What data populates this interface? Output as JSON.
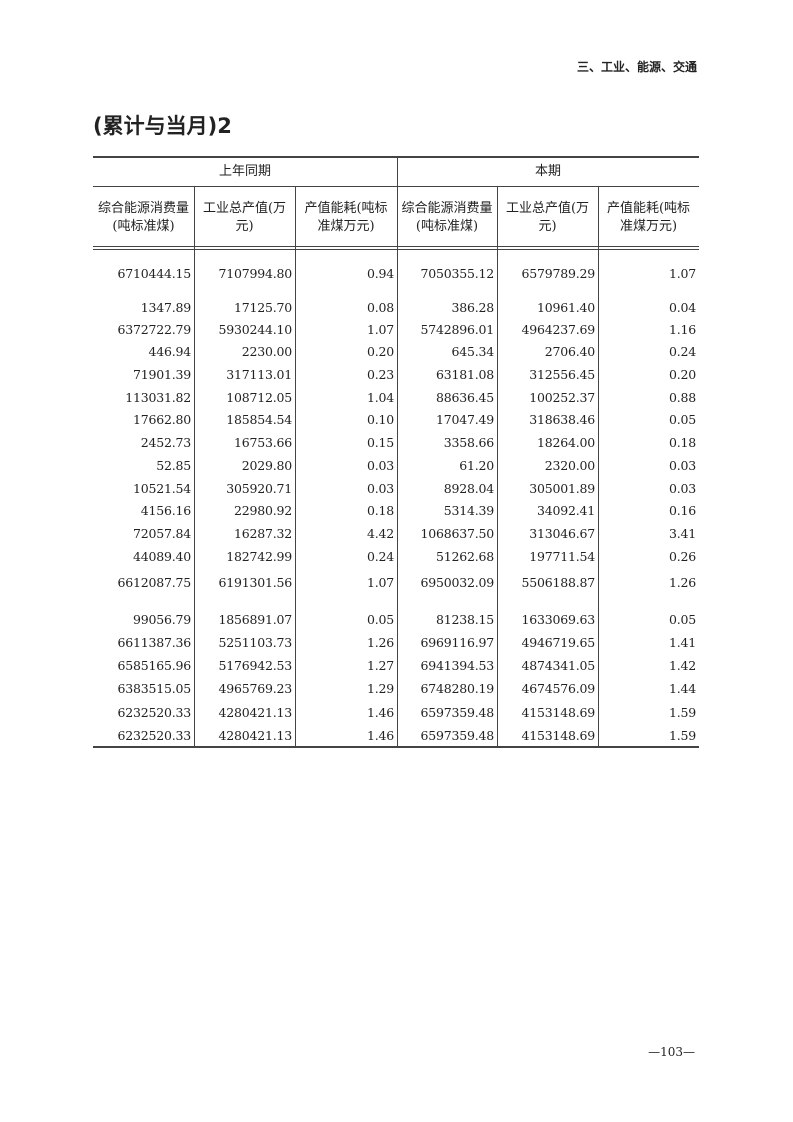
{
  "header": {
    "section": "三、工业、能源、交通"
  },
  "title": "(累计与当月)2",
  "table": {
    "groups": [
      "上年同期",
      "本期"
    ],
    "columns": [
      [
        "综合能源消费量",
        "(吨标准煤)"
      ],
      [
        "工业总产值(万",
        "元)"
      ],
      [
        "产值能耗(吨标",
        "准煤万元)"
      ],
      [
        "综合能源消费量",
        "(吨标准煤)"
      ],
      [
        "工业总产值(万",
        "元)"
      ],
      [
        "产值能耗(吨标",
        "准煤万元)"
      ]
    ],
    "rows": [
      [
        "6710444.15",
        "7107994.80",
        "0.94",
        "7050355.12",
        "6579789.29",
        "1.07"
      ],
      [
        "1347.89",
        "17125.70",
        "0.08",
        "386.28",
        "10961.40",
        "0.04"
      ],
      [
        "6372722.79",
        "5930244.10",
        "1.07",
        "5742896.01",
        "4964237.69",
        "1.16"
      ],
      [
        "446.94",
        "2230.00",
        "0.20",
        "645.34",
        "2706.40",
        "0.24"
      ],
      [
        "71901.39",
        "317113.01",
        "0.23",
        "63181.08",
        "312556.45",
        "0.20"
      ],
      [
        "113031.82",
        "108712.05",
        "1.04",
        "88636.45",
        "100252.37",
        "0.88"
      ],
      [
        "17662.80",
        "185854.54",
        "0.10",
        "17047.49",
        "318638.46",
        "0.05"
      ],
      [
        "2452.73",
        "16753.66",
        "0.15",
        "3358.66",
        "18264.00",
        "0.18"
      ],
      [
        "52.85",
        "2029.80",
        "0.03",
        "61.20",
        "2320.00",
        "0.03"
      ],
      [
        "10521.54",
        "305920.71",
        "0.03",
        "8928.04",
        "305001.89",
        "0.03"
      ],
      [
        "4156.16",
        "22980.92",
        "0.18",
        "5314.39",
        "34092.41",
        "0.16"
      ],
      [
        "72057.84",
        "16287.32",
        "4.42",
        "1068637.50",
        "313046.67",
        "3.41"
      ],
      [
        "44089.40",
        "182742.99",
        "0.24",
        "51262.68",
        "197711.54",
        "0.26"
      ],
      [
        "6612087.75",
        "6191301.56",
        "1.07",
        "6950032.09",
        "5506188.87",
        "1.26"
      ],
      [
        "99056.79",
        "1856891.07",
        "0.05",
        "81238.15",
        "1633069.63",
        "0.05"
      ],
      [
        "6611387.36",
        "5251103.73",
        "1.26",
        "6969116.97",
        "4946719.65",
        "1.41"
      ],
      [
        "6585165.96",
        "5176942.53",
        "1.27",
        "6941394.53",
        "4874341.05",
        "1.42"
      ],
      [
        "6383515.05",
        "4965769.23",
        "1.29",
        "6748280.19",
        "4674576.09",
        "1.44"
      ],
      [
        "6232520.33",
        "4280421.13",
        "1.46",
        "6597359.48",
        "4153148.69",
        "1.59"
      ],
      [
        "6232520.33",
        "4280421.13",
        "1.46",
        "6597359.48",
        "4153148.69",
        "1.59"
      ]
    ]
  },
  "footer": {
    "page_number": "—103—"
  }
}
